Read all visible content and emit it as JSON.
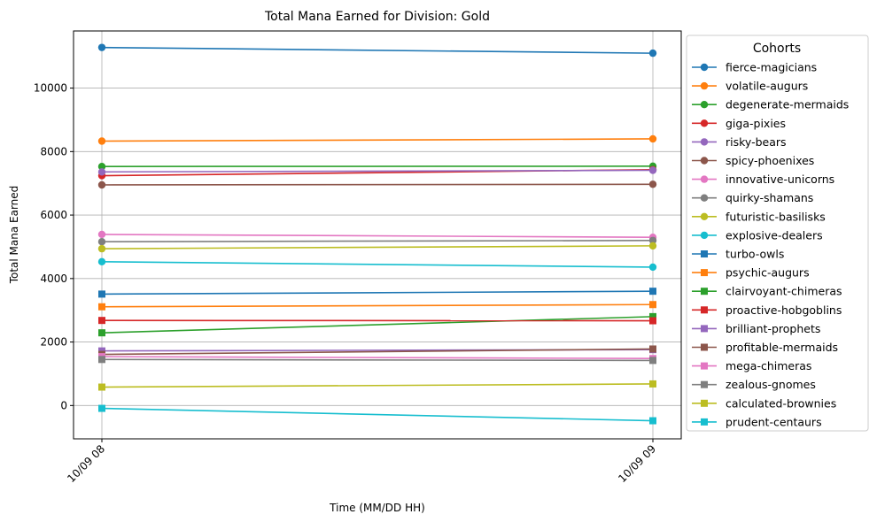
{
  "chart_data": {
    "type": "line",
    "title": "Total Mana Earned for Division: Gold",
    "xlabel": "Time (MM/DD HH)",
    "ylabel": "Total Mana Earned",
    "x": [
      "10/09 08",
      "10/09 09"
    ],
    "ylim": [
      -1050,
      11800
    ],
    "yticks": [
      0,
      2000,
      4000,
      6000,
      8000,
      10000
    ],
    "grid": true,
    "legend": {
      "title": "Cohorts",
      "placement": "outside-right"
    },
    "series": [
      {
        "name": "fierce-magicians",
        "values": [
          11280,
          11100
        ],
        "color": "#1f77b4",
        "marker": "circle"
      },
      {
        "name": "volatile-augurs",
        "values": [
          8330,
          8400
        ],
        "color": "#ff7f0e",
        "marker": "circle"
      },
      {
        "name": "degenerate-mermaids",
        "values": [
          7530,
          7540
        ],
        "color": "#2ca02c",
        "marker": "circle"
      },
      {
        "name": "giga-pixies",
        "values": [
          7240,
          7430
        ],
        "color": "#d62728",
        "marker": "circle"
      },
      {
        "name": "risky-bears",
        "values": [
          7360,
          7410
        ],
        "color": "#9467bd",
        "marker": "circle"
      },
      {
        "name": "spicy-phoenixes",
        "values": [
          6950,
          6970
        ],
        "color": "#8c564b",
        "marker": "circle"
      },
      {
        "name": "innovative-unicorns",
        "values": [
          5390,
          5300
        ],
        "color": "#e377c2",
        "marker": "circle"
      },
      {
        "name": "quirky-shamans",
        "values": [
          5160,
          5200
        ],
        "color": "#7f7f7f",
        "marker": "circle"
      },
      {
        "name": "futuristic-basilisks",
        "values": [
          4940,
          5030
        ],
        "color": "#bcbd22",
        "marker": "circle"
      },
      {
        "name": "explosive-dealers",
        "values": [
          4530,
          4360
        ],
        "color": "#17becf",
        "marker": "circle"
      },
      {
        "name": "turbo-owls",
        "values": [
          3510,
          3600
        ],
        "color": "#1f77b4",
        "marker": "square"
      },
      {
        "name": "psychic-augurs",
        "values": [
          3110,
          3180
        ],
        "color": "#ff7f0e",
        "marker": "square"
      },
      {
        "name": "clairvoyant-chimeras",
        "values": [
          2290,
          2800
        ],
        "color": "#2ca02c",
        "marker": "square"
      },
      {
        "name": "proactive-hobgoblins",
        "values": [
          2680,
          2670
        ],
        "color": "#d62728",
        "marker": "square"
      },
      {
        "name": "brilliant-prophets",
        "values": [
          1720,
          1760
        ],
        "color": "#9467bd",
        "marker": "square"
      },
      {
        "name": "profitable-mermaids",
        "values": [
          1610,
          1780
        ],
        "color": "#8c564b",
        "marker": "square"
      },
      {
        "name": "mega-chimeras",
        "values": [
          1540,
          1480
        ],
        "color": "#e377c2",
        "marker": "square"
      },
      {
        "name": "zealous-gnomes",
        "values": [
          1450,
          1420
        ],
        "color": "#7f7f7f",
        "marker": "square"
      },
      {
        "name": "calculated-brownies",
        "values": [
          580,
          680
        ],
        "color": "#bcbd22",
        "marker": "square"
      },
      {
        "name": "prudent-centaurs",
        "values": [
          -90,
          -480
        ],
        "color": "#17becf",
        "marker": "square"
      }
    ]
  }
}
